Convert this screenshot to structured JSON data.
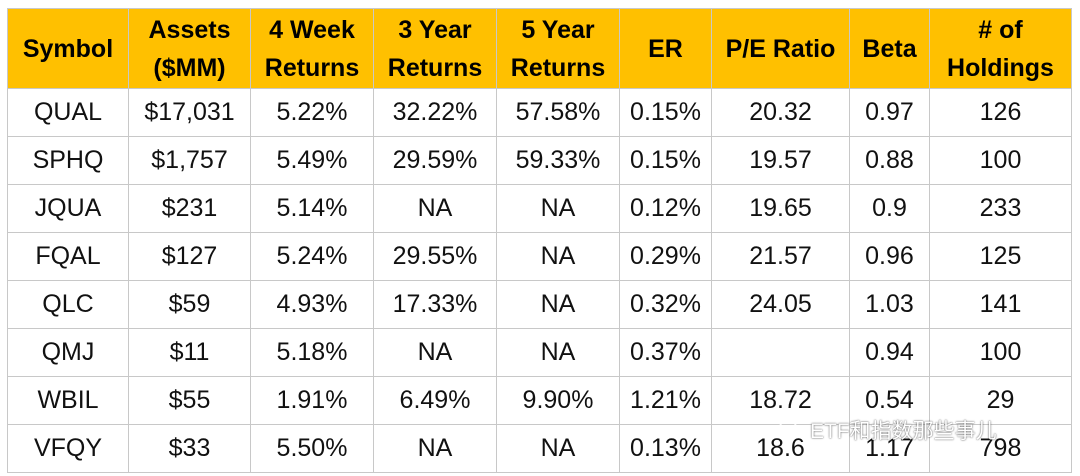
{
  "table": {
    "headers": [
      [
        "Symbol"
      ],
      [
        "Assets",
        "($MM)"
      ],
      [
        "4 Week",
        "Returns"
      ],
      [
        "3 Year",
        "Returns"
      ],
      [
        "5 Year",
        "Returns"
      ],
      [
        "ER"
      ],
      [
        "P/E Ratio"
      ],
      [
        "Beta"
      ],
      [
        "# of",
        "Holdings"
      ]
    ],
    "rows": [
      [
        "QUAL",
        "$17,031",
        "5.22%",
        "32.22%",
        "57.58%",
        "0.15%",
        "20.32",
        "0.97",
        "126"
      ],
      [
        "SPHQ",
        "$1,757",
        "5.49%",
        "29.59%",
        "59.33%",
        "0.15%",
        "19.57",
        "0.88",
        "100"
      ],
      [
        "JQUA",
        "$231",
        "5.14%",
        "NA",
        "NA",
        "0.12%",
        "19.65",
        "0.9",
        "233"
      ],
      [
        "FQAL",
        "$127",
        "5.24%",
        "29.55%",
        "NA",
        "0.29%",
        "21.57",
        "0.96",
        "125"
      ],
      [
        "QLC",
        "$59",
        "4.93%",
        "17.33%",
        "NA",
        "0.32%",
        "24.05",
        "1.03",
        "141"
      ],
      [
        "QMJ",
        "$11",
        "5.18%",
        "NA",
        "NA",
        "0.37%",
        "",
        "0.94",
        "100"
      ],
      [
        "WBIL",
        "$55",
        "1.91%",
        "6.49%",
        "9.90%",
        "1.21%",
        "18.72",
        "0.54",
        "29"
      ],
      [
        "VFQY",
        "$33",
        "5.50%",
        "NA",
        "NA",
        "0.13%",
        "18.6",
        "1.17",
        "798"
      ]
    ],
    "header_color": "#ffc000"
  },
  "watermark": {
    "text": "ETF和指数那些事儿",
    "icon": "wechat-icon"
  }
}
